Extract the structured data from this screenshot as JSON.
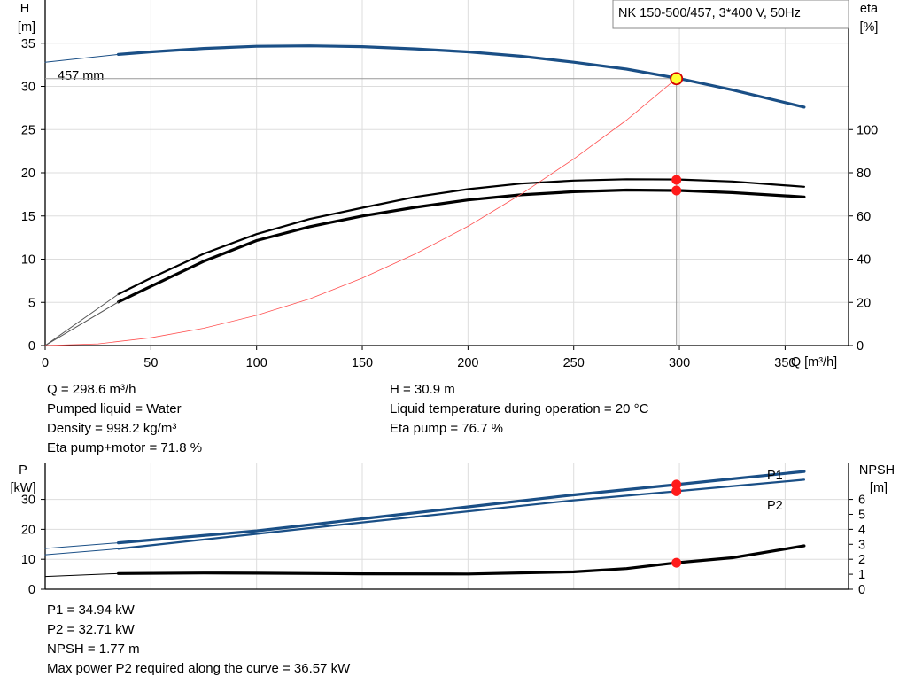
{
  "chart_data": [
    {
      "type": "line",
      "title": "NK 150-500/457, 3*400 V, 50Hz",
      "ylabel_left": "H",
      "ylabel_left_unit": "[m]",
      "ylabel_right": "eta",
      "ylabel_right_unit": "[%]",
      "xlabel": "Q [m³/h]",
      "xlim": [
        0,
        380
      ],
      "ylim_left": [
        0,
        40
      ],
      "ylim_right": [
        0,
        160
      ],
      "x_ticks": [
        0,
        50,
        100,
        150,
        200,
        250,
        300,
        350
      ],
      "y_left_ticks": [
        0,
        5,
        10,
        15,
        20,
        25,
        30,
        35
      ],
      "y_right_ticks": [
        0,
        20,
        40,
        60,
        80,
        100
      ],
      "grid": true,
      "curve_label": "457 mm",
      "series": [
        {
          "name": "",
          "axis": "left",
          "color": "#1a4f86",
          "style": "thick",
          "x": [
            34.6,
            50,
            75,
            100,
            125,
            150,
            175,
            200,
            225,
            250,
            275,
            300,
            325,
            359
          ],
          "values": [
            33.7,
            34.0,
            34.4,
            34.65,
            34.7,
            34.6,
            34.35,
            34.0,
            33.5,
            32.8,
            32.0,
            30.9,
            29.6,
            27.6
          ]
        },
        {
          "name": "",
          "axis": "left",
          "color": "#1a4f86",
          "style": "thin",
          "x": [
            0,
            34.6
          ],
          "values": [
            32.8,
            33.7
          ]
        },
        {
          "name": "",
          "axis": "right",
          "color": "#000000",
          "style": "medium",
          "x": [
            34.6,
            50,
            75,
            100,
            125,
            150,
            175,
            200,
            225,
            250,
            275,
            300,
            325,
            359
          ],
          "values": [
            23.8,
            31.2,
            42.5,
            51.6,
            58.6,
            63.8,
            68.8,
            72.4,
            75.0,
            76.4,
            77.0,
            76.9,
            76.0,
            73.5
          ]
        },
        {
          "name": "",
          "axis": "right",
          "color": "#000000",
          "style": "thick",
          "x": [
            34.6,
            50,
            75,
            100,
            125,
            150,
            175,
            200,
            225,
            250,
            275,
            300,
            325,
            359
          ],
          "values": [
            20.2,
            27.4,
            39.0,
            48.6,
            55.0,
            60.0,
            64.0,
            67.4,
            69.8,
            71.2,
            72.0,
            71.8,
            70.8,
            68.8
          ]
        },
        {
          "name": "",
          "axis": "right",
          "color": "#555555",
          "style": "thin",
          "x": [
            0,
            34.6
          ],
          "values": [
            0,
            23.8
          ]
        },
        {
          "name": "",
          "axis": "right",
          "color": "#555555",
          "style": "thin",
          "x": [
            0,
            34.6
          ],
          "values": [
            0,
            20.2
          ]
        },
        {
          "name": "",
          "axis": "left",
          "color": "#ff5050",
          "style": "hair",
          "x": [
            0,
            25,
            50,
            75,
            100,
            125,
            150,
            175,
            200,
            225,
            250,
            275,
            298.6
          ],
          "values": [
            0,
            0.2,
            0.9,
            2.0,
            3.5,
            5.4,
            7.8,
            10.6,
            13.8,
            17.5,
            21.6,
            26.1,
            30.9
          ]
        }
      ],
      "operating_point": {
        "x": 298.6,
        "y": 30.9
      },
      "marker_points_left": [
        {
          "x": 298.6,
          "y": 30.9
        }
      ],
      "marker_points_right": [
        {
          "x": 298.6,
          "y": 76.7
        },
        {
          "x": 298.6,
          "y": 71.8
        }
      ]
    },
    {
      "type": "line",
      "ylabel_left": "P",
      "ylabel_left_unit": "[kW]",
      "ylabel_right": "NPSH",
      "ylabel_right_unit": "[m]",
      "xlim": [
        0,
        380
      ],
      "ylim_left": [
        0,
        42
      ],
      "ylim_right": [
        0,
        8.4
      ],
      "y_left_ticks": [
        0,
        10,
        20,
        30
      ],
      "y_right_ticks": [
        0,
        1,
        2,
        3,
        4,
        5,
        6
      ],
      "grid": true,
      "series": [
        {
          "name": "P1",
          "axis": "left",
          "color": "#1a4f86",
          "style": "thick",
          "x": [
            34.6,
            100,
            150,
            200,
            250,
            298.6,
            359
          ],
          "values": [
            15.5,
            19.5,
            23.5,
            27.5,
            31.5,
            34.94,
            39.3
          ]
        },
        {
          "name": "P2",
          "axis": "left",
          "color": "#1a4f86",
          "style": "medium",
          "x": [
            34.6,
            100,
            150,
            200,
            250,
            298.6,
            359
          ],
          "values": [
            13.5,
            18.5,
            22.3,
            26.0,
            29.7,
            32.71,
            36.57
          ]
        },
        {
          "name": "",
          "axis": "left",
          "color": "#1a4f86",
          "style": "thin",
          "x": [
            0,
            34.6
          ],
          "values": [
            13.6,
            15.5
          ]
        },
        {
          "name": "",
          "axis": "left",
          "color": "#1a4f86",
          "style": "thin",
          "x": [
            0,
            34.6
          ],
          "values": [
            11.5,
            13.5
          ]
        },
        {
          "name": "",
          "axis": "right",
          "color": "#000000",
          "style": "thick",
          "x": [
            34.6,
            75,
            100,
            150,
            200,
            250,
            275,
            298.6,
            325,
            359
          ],
          "values": [
            1.05,
            1.08,
            1.07,
            1.03,
            1.02,
            1.16,
            1.38,
            1.77,
            2.1,
            2.9
          ]
        },
        {
          "name": "",
          "axis": "right",
          "color": "#000000",
          "style": "thin",
          "x": [
            0,
            34.6
          ],
          "values": [
            0.85,
            1.05
          ]
        }
      ],
      "marker_points_left": [
        {
          "x": 298.6,
          "y": 34.94
        },
        {
          "x": 298.6,
          "y": 32.71
        }
      ],
      "marker_points_right": [
        {
          "x": 298.6,
          "y": 1.77
        }
      ]
    }
  ],
  "info_top_left": [
    "Q = 298.6 m³/h",
    "Pumped liquid = Water",
    "Density = 998.2 kg/m³",
    "Eta pump+motor = 71.8 %"
  ],
  "info_top_right": [
    "H = 30.9 m",
    "Liquid temperature during operation = 20 °C",
    "Eta pump = 76.7 %"
  ],
  "info_bottom": [
    "P1 = 34.94 kW",
    "P2 = 32.71 kW",
    "NPSH = 1.77 m",
    "Max power P2 required along the curve = 36.57 kW"
  ],
  "colors": {
    "head_curve": "#1a4f86",
    "efficiency_curve": "#000000",
    "system_curve": "#ff5050",
    "marker": "#ff1a1a",
    "operating_point": "#ffff33",
    "grid": "#dddddd"
  }
}
